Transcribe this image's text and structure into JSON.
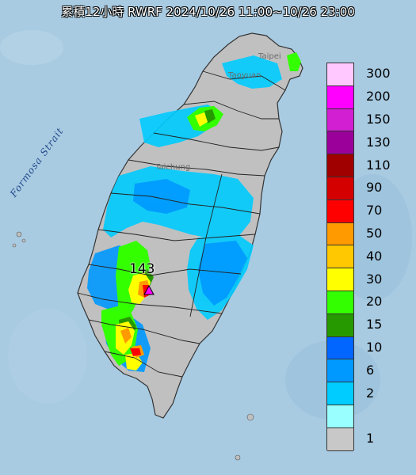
{
  "title": "累積12小時 RWRF 2024/10/26 11:00~10/26 23:00",
  "sea_label": "Formosa Strait",
  "place_labels": [
    "Taipei",
    "Taoyuan",
    "Taichung"
  ],
  "max_value_label": "143",
  "legend": [
    {
      "value": "300",
      "color": "#ffc9ff"
    },
    {
      "value": "200",
      "color": "#ff00ff"
    },
    {
      "value": "150",
      "color": "#d11fd1"
    },
    {
      "value": "130",
      "color": "#9b009b"
    },
    {
      "value": "110",
      "color": "#a10000"
    },
    {
      "value": "90",
      "color": "#d40000"
    },
    {
      "value": "70",
      "color": "#ff0000"
    },
    {
      "value": "50",
      "color": "#ff9a00"
    },
    {
      "value": "40",
      "color": "#ffc800"
    },
    {
      "value": "30",
      "color": "#ffff00"
    },
    {
      "value": "20",
      "color": "#33ff00"
    },
    {
      "value": "15",
      "color": "#269900"
    },
    {
      "value": "10",
      "color": "#0066ff"
    },
    {
      "value": "6",
      "color": "#0099ff"
    },
    {
      "value": "2",
      "color": "#00ccff"
    },
    {
      "value": "",
      "color": "#99ffff"
    },
    {
      "value": "1",
      "color": "#c8c8c8"
    }
  ],
  "colors": {
    "sea": "#9fc6e0",
    "land": "#c0c0c0"
  },
  "icons": [
    "max-marker-triangle-icon"
  ]
}
